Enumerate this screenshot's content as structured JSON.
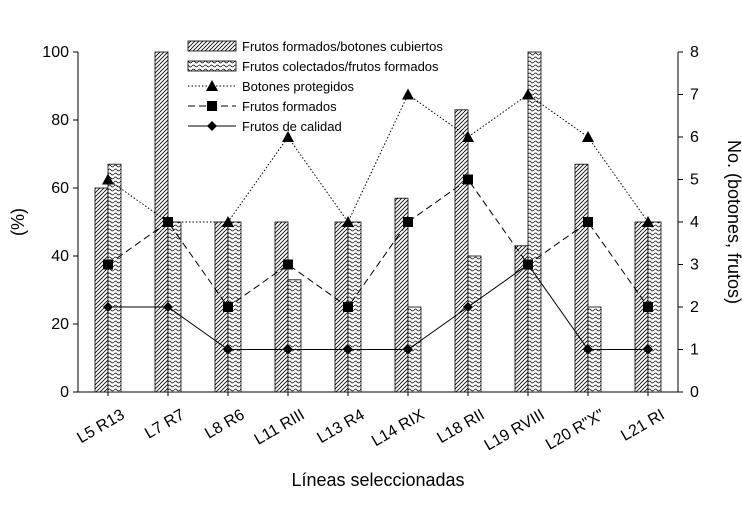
{
  "chart_data": {
    "type": "bar",
    "xlabel": "Líneas seleccionadas",
    "ylabel_left": "(%)",
    "ylabel_right": "No. (botones, frutos)",
    "ylim_left": [
      0,
      100
    ],
    "ylim_right": [
      0,
      8
    ],
    "yticks_left": [
      "0",
      "20",
      "40",
      "60",
      "80",
      "100"
    ],
    "yticks_right": [
      "0",
      "1",
      "2",
      "3",
      "4",
      "5",
      "6",
      "7",
      "8"
    ],
    "grid": false,
    "legend_position": "top",
    "categories": [
      "L5 R13",
      "L7 R7",
      "L8 R6",
      "L11 RIII",
      "L13 R4",
      "L14 RIX",
      "L18 RII",
      "L19 RVIII",
      "L20 R\"X\"",
      "L21 RI"
    ],
    "bar_series": [
      {
        "name": "Frutos formados/botones cubiertos",
        "axis": "left",
        "pattern": "diag",
        "values": [
          60,
          100,
          50,
          50,
          50,
          57,
          83,
          43,
          67,
          50
        ]
      },
      {
        "name": "Frutos colectados/frutos formados",
        "axis": "left",
        "pattern": "wave",
        "values": [
          67,
          50,
          50,
          33,
          50,
          25,
          40,
          100,
          25,
          50
        ]
      }
    ],
    "line_series": [
      {
        "name": "Botones protegidos",
        "axis": "right",
        "marker": "triangle",
        "dash": "dotted",
        "values": [
          5,
          4,
          4,
          6,
          4,
          7,
          6,
          7,
          6,
          4
        ]
      },
      {
        "name": "Frutos formados",
        "axis": "right",
        "marker": "square",
        "dash": "dashed",
        "values": [
          3,
          4,
          2,
          3,
          2,
          4,
          5,
          3,
          4,
          2
        ]
      },
      {
        "name": "Frutos de calidad",
        "axis": "right",
        "marker": "diamond",
        "dash": "solid",
        "values": [
          2,
          2,
          1,
          1,
          1,
          1,
          2,
          3,
          1,
          1
        ]
      }
    ]
  }
}
